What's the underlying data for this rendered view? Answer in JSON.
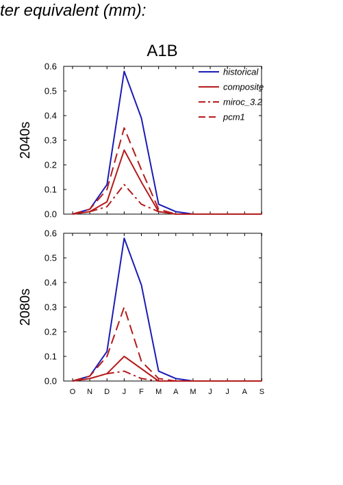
{
  "header": {
    "title_text": "ter equivalent (mm):"
  },
  "scenario": "A1B",
  "months": [
    "O",
    "N",
    "D",
    "J",
    "F",
    "M",
    "A",
    "M",
    "J",
    "J",
    "A",
    "S"
  ],
  "colors": {
    "historical": "#1a1ab4",
    "projection": "#b41a1a"
  },
  "legend": [
    {
      "label": "historical",
      "style": "solid",
      "color": "#1a1ab4"
    },
    {
      "label": "composite",
      "style": "solid",
      "color": "#b41a1a"
    },
    {
      "label": "miroc_3.2",
      "style": "dashdot",
      "color": "#b41a1a"
    },
    {
      "label": "pcm1",
      "style": "dashed",
      "color": "#b41a1a"
    }
  ],
  "chart_data": [
    {
      "type": "line",
      "panel_label": "2040s",
      "ylim": [
        0,
        0.6
      ],
      "yticks": [
        "0.0",
        "0.1",
        "0.2",
        "0.3",
        "0.4",
        "0.5",
        "0.6"
      ],
      "x": [
        "O",
        "N",
        "D",
        "J",
        "F",
        "M",
        "A",
        "M",
        "J",
        "J",
        "A",
        "S"
      ],
      "show_month_labels": false,
      "series": [
        {
          "name": "historical",
          "values": [
            0.0,
            0.02,
            0.12,
            0.58,
            0.39,
            0.04,
            0.01,
            0.0,
            0.0,
            0.0,
            0.0,
            0.0
          ]
        },
        {
          "name": "composite",
          "values": [
            0.0,
            0.01,
            0.05,
            0.26,
            0.13,
            0.01,
            0.0,
            0.0,
            0.0,
            0.0,
            0.0,
            0.0
          ]
        },
        {
          "name": "miroc_3.2",
          "values": [
            0.0,
            0.01,
            0.03,
            0.12,
            0.04,
            0.01,
            0.0,
            0.0,
            0.0,
            0.0,
            0.0,
            0.0
          ]
        },
        {
          "name": "pcm1",
          "values": [
            0.0,
            0.02,
            0.1,
            0.35,
            0.18,
            0.02,
            0.0,
            0.0,
            0.0,
            0.0,
            0.0,
            0.0
          ]
        }
      ]
    },
    {
      "type": "line",
      "panel_label": "2080s",
      "ylim": [
        0,
        0.6
      ],
      "yticks": [
        "0.0",
        "0.1",
        "0.2",
        "0.3",
        "0.4",
        "0.5",
        "0.6"
      ],
      "x": [
        "O",
        "N",
        "D",
        "J",
        "F",
        "M",
        "A",
        "M",
        "J",
        "J",
        "A",
        "S"
      ],
      "show_month_labels": true,
      "series": [
        {
          "name": "historical",
          "values": [
            0.0,
            0.02,
            0.12,
            0.58,
            0.39,
            0.04,
            0.01,
            0.0,
            0.0,
            0.0,
            0.0,
            0.0
          ]
        },
        {
          "name": "composite",
          "values": [
            0.0,
            0.01,
            0.03,
            0.1,
            0.05,
            0.0,
            0.0,
            0.0,
            0.0,
            0.0,
            0.0,
            0.0
          ]
        },
        {
          "name": "miroc_3.2",
          "values": [
            0.0,
            0.01,
            0.03,
            0.04,
            0.01,
            0.0,
            0.0,
            0.0,
            0.0,
            0.0,
            0.0,
            0.0
          ]
        },
        {
          "name": "pcm1",
          "values": [
            0.0,
            0.02,
            0.1,
            0.3,
            0.08,
            0.01,
            0.0,
            0.0,
            0.0,
            0.0,
            0.0,
            0.0
          ]
        }
      ]
    }
  ]
}
